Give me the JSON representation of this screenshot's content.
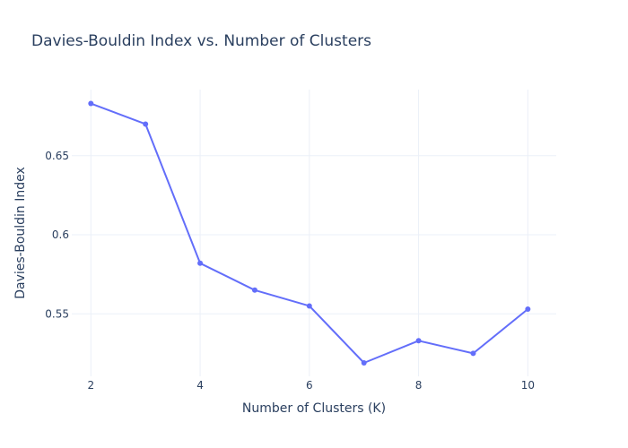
{
  "chart_data": {
    "type": "line",
    "title": "Davies-Bouldin Index vs. Number of Clusters",
    "xlabel": "Number of Clusters (K)",
    "ylabel": "Davies-Bouldin Index",
    "x": [
      2,
      3,
      4,
      5,
      6,
      7,
      8,
      9,
      10
    ],
    "series": [
      {
        "values": [
          0.683,
          0.67,
          0.582,
          0.565,
          0.555,
          0.519,
          0.533,
          0.525,
          0.553
        ]
      }
    ],
    "xticks": [
      2,
      4,
      6,
      8,
      10
    ],
    "xtick_labels": [
      "2",
      "4",
      "6",
      "8",
      "10"
    ],
    "yticks": [
      0.55,
      0.6,
      0.65
    ],
    "ytick_labels": [
      "0.55",
      "0.6",
      "0.65"
    ],
    "xlim": [
      1.65,
      10.52
    ],
    "ylim": [
      0.5105,
      0.6918
    ],
    "grid": true,
    "line_color": "#636efa"
  }
}
